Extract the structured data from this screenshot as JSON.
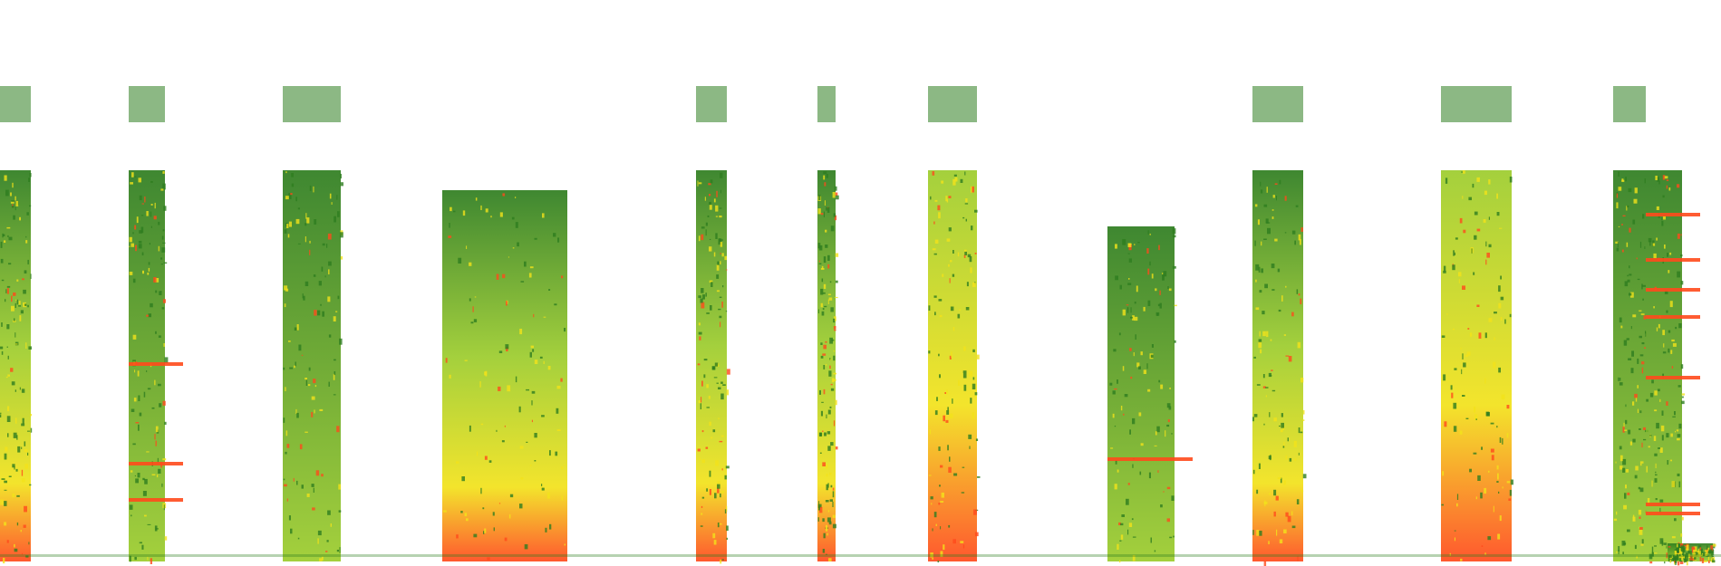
{
  "image": {
    "kind": "spectrogram-collage",
    "background": "#ffffff",
    "palette": {
      "low": "#2e7d1f",
      "mid": "#9ccc2c",
      "high": "#f2e21a",
      "peak": "#ff4a1c"
    },
    "panel_count": 13
  }
}
